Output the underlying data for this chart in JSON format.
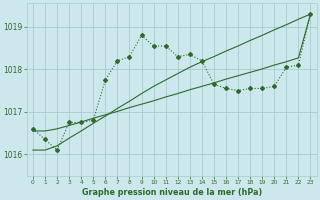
{
  "background_color": "#cce8ec",
  "grid_color": "#aacccc",
  "line_color": "#2d6a2d",
  "label_bg_color": "#cce8ec",
  "xlabel": "Graphe pression niveau de la mer (hPa)",
  "hours": [
    0,
    1,
    2,
    3,
    4,
    5,
    6,
    7,
    8,
    9,
    10,
    11,
    12,
    13,
    14,
    15,
    16,
    17,
    18,
    19,
    20,
    21,
    22,
    23
  ],
  "pressure_dotted": [
    1016.6,
    1016.35,
    1016.1,
    1016.75,
    1016.75,
    1016.8,
    1017.75,
    1018.2,
    1018.3,
    1018.8,
    1018.55,
    1018.55,
    1018.3,
    1018.35,
    1018.2,
    1017.65,
    1017.55,
    1017.5,
    1017.55,
    1017.55,
    1017.6,
    1018.05,
    1018.1,
    1019.3
  ],
  "pressure_line1": [
    1016.55,
    1016.55,
    1016.6,
    1016.68,
    1016.76,
    1016.85,
    1016.93,
    1017.01,
    1017.1,
    1017.18,
    1017.26,
    1017.35,
    1017.43,
    1017.52,
    1017.6,
    1017.68,
    1017.77,
    1017.85,
    1017.93,
    1018.01,
    1018.1,
    1018.18,
    1018.27,
    1019.3
  ],
  "pressure_line2": [
    1016.1,
    1016.1,
    1016.2,
    1016.38,
    1016.55,
    1016.73,
    1016.9,
    1017.08,
    1017.25,
    1017.43,
    1017.6,
    1017.75,
    1017.9,
    1018.05,
    1018.18,
    1018.3,
    1018.43,
    1018.55,
    1018.68,
    1018.8,
    1018.93,
    1019.05,
    1019.18,
    1019.3
  ],
  "ylim": [
    1015.5,
    1019.55
  ],
  "yticks": [
    1016,
    1017,
    1018,
    1019
  ],
  "xlim": [
    -0.5,
    23.5
  ]
}
